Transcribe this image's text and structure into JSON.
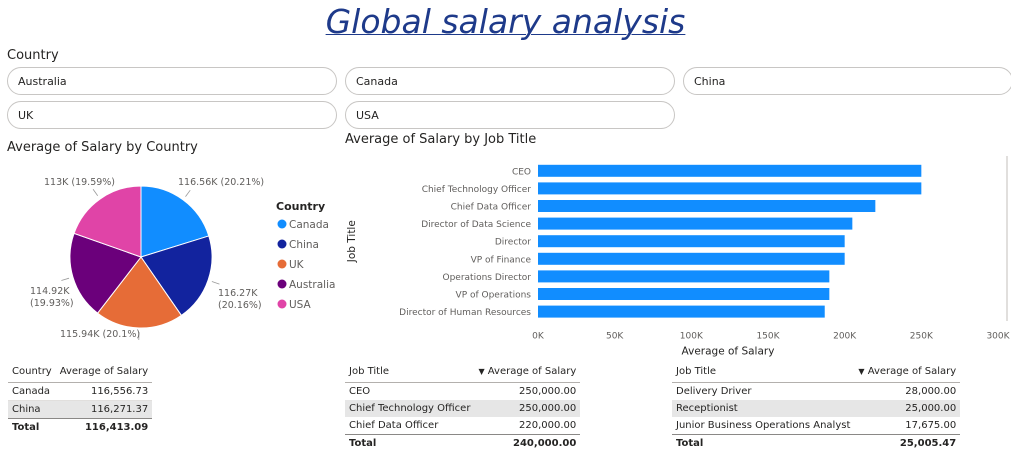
{
  "page": {
    "title": "Global salary analysis"
  },
  "slicer": {
    "label": "Country",
    "options": [
      "Australia",
      "Canada",
      "China",
      "UK",
      "USA"
    ]
  },
  "colors": {
    "Canada": "#118dff",
    "China": "#12239e",
    "UK": "#e66c37",
    "Australia": "#6b007b",
    "USA": "#e044a7",
    "bar": "#118dff"
  },
  "chart_data": [
    {
      "type": "pie",
      "title": "Average of Salary by Country",
      "legend_title": "Country",
      "legend_position": "right",
      "slices": [
        {
          "name": "Canada",
          "value": 116556.73,
          "label": "116.56K (20.21%)"
        },
        {
          "name": "China",
          "value": 116271.37,
          "label": "116.27K (20.16%)"
        },
        {
          "name": "UK",
          "value": 115940,
          "label": "115.94K (20.1%)"
        },
        {
          "name": "Australia",
          "value": 114920,
          "label": "114.92K (19.93%)"
        },
        {
          "name": "USA",
          "value": 113000,
          "label": "113K (19.59%)"
        }
      ]
    },
    {
      "type": "bar",
      "orientation": "horizontal",
      "title": "Average of Salary by Job Title",
      "xlabel": "Average of Salary",
      "ylabel": "Job Title",
      "xlim": [
        0,
        300000
      ],
      "xticks": [
        0,
        50000,
        100000,
        150000,
        200000,
        250000,
        300000
      ],
      "xtick_labels": [
        "0K",
        "50K",
        "100K",
        "150K",
        "200K",
        "250K",
        "300K"
      ],
      "grid": false,
      "categories": [
        "CEO",
        "Chief Technology Officer",
        "Chief Data Officer",
        "Director of Data Science",
        "Director",
        "VP of Finance",
        "Operations Director",
        "VP of Operations",
        "Director of Human Resources"
      ],
      "values": [
        250000,
        250000,
        220000,
        205000,
        200000,
        200000,
        190000,
        190000,
        187000
      ]
    }
  ],
  "table_country": {
    "headers": [
      "Country",
      "Average of Salary"
    ],
    "rows": [
      [
        "Canada",
        "116,556.73"
      ],
      [
        "China",
        "116,271.37"
      ]
    ],
    "total": [
      "Total",
      "116,413.09"
    ]
  },
  "table_top": {
    "headers": [
      "Job Title",
      "Average of Salary"
    ],
    "rows": [
      [
        "CEO",
        "250,000.00"
      ],
      [
        "Chief Technology Officer",
        "250,000.00"
      ],
      [
        "Chief Data Officer",
        "220,000.00"
      ]
    ],
    "total": [
      "Total",
      "240,000.00"
    ]
  },
  "table_bottom": {
    "headers": [
      "Job Title",
      "Average of Salary"
    ],
    "rows": [
      [
        "Delivery Driver",
        "28,000.00"
      ],
      [
        "Receptionist",
        "25,000.00"
      ],
      [
        "Junior Business Operations Analyst",
        "17,675.00"
      ]
    ],
    "total": [
      "Total",
      "25,005.47"
    ]
  }
}
